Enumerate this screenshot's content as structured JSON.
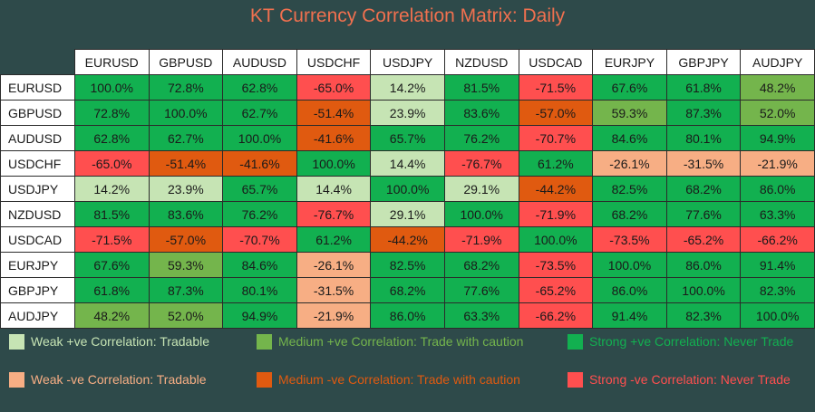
{
  "title": "KT Currency Correlation Matrix: Daily",
  "colors": {
    "weak_pos": "#c6e4b4",
    "medium_pos": "#74b54c",
    "strong_pos": "#12b050",
    "weak_neg": "#f7ae84",
    "medium_neg": "#e05a10",
    "strong_neg": "#ff4f4f",
    "diagonal": "#12b050"
  },
  "symbols": [
    "EURUSD",
    "GBPUSD",
    "AUDUSD",
    "USDCHF",
    "USDJPY",
    "NZDUSD",
    "USDCAD",
    "EURJPY",
    "GBPJPY",
    "AUDJPY"
  ],
  "matrix": [
    [
      {
        "v": "100.0%",
        "c": "strong_pos"
      },
      {
        "v": "72.8%",
        "c": "strong_pos"
      },
      {
        "v": "62.8%",
        "c": "strong_pos"
      },
      {
        "v": "-65.0%",
        "c": "strong_neg"
      },
      {
        "v": "14.2%",
        "c": "weak_pos"
      },
      {
        "v": "81.5%",
        "c": "strong_pos"
      },
      {
        "v": "-71.5%",
        "c": "strong_neg"
      },
      {
        "v": "67.6%",
        "c": "strong_pos"
      },
      {
        "v": "61.8%",
        "c": "strong_pos"
      },
      {
        "v": "48.2%",
        "c": "medium_pos"
      }
    ],
    [
      {
        "v": "72.8%",
        "c": "strong_pos"
      },
      {
        "v": "100.0%",
        "c": "strong_pos"
      },
      {
        "v": "62.7%",
        "c": "strong_pos"
      },
      {
        "v": "-51.4%",
        "c": "medium_neg"
      },
      {
        "v": "23.9%",
        "c": "weak_pos"
      },
      {
        "v": "83.6%",
        "c": "strong_pos"
      },
      {
        "v": "-57.0%",
        "c": "medium_neg"
      },
      {
        "v": "59.3%",
        "c": "medium_pos"
      },
      {
        "v": "87.3%",
        "c": "strong_pos"
      },
      {
        "v": "52.0%",
        "c": "medium_pos"
      }
    ],
    [
      {
        "v": "62.8%",
        "c": "strong_pos"
      },
      {
        "v": "62.7%",
        "c": "strong_pos"
      },
      {
        "v": "100.0%",
        "c": "strong_pos"
      },
      {
        "v": "-41.6%",
        "c": "medium_neg"
      },
      {
        "v": "65.7%",
        "c": "strong_pos"
      },
      {
        "v": "76.2%",
        "c": "strong_pos"
      },
      {
        "v": "-70.7%",
        "c": "strong_neg"
      },
      {
        "v": "84.6%",
        "c": "strong_pos"
      },
      {
        "v": "80.1%",
        "c": "strong_pos"
      },
      {
        "v": "94.9%",
        "c": "strong_pos"
      }
    ],
    [
      {
        "v": "-65.0%",
        "c": "strong_neg"
      },
      {
        "v": "-51.4%",
        "c": "medium_neg"
      },
      {
        "v": "-41.6%",
        "c": "medium_neg"
      },
      {
        "v": "100.0%",
        "c": "strong_pos"
      },
      {
        "v": "14.4%",
        "c": "weak_pos"
      },
      {
        "v": "-76.7%",
        "c": "strong_neg"
      },
      {
        "v": "61.2%",
        "c": "strong_pos"
      },
      {
        "v": "-26.1%",
        "c": "weak_neg"
      },
      {
        "v": "-31.5%",
        "c": "weak_neg"
      },
      {
        "v": "-21.9%",
        "c": "weak_neg"
      }
    ],
    [
      {
        "v": "14.2%",
        "c": "weak_pos"
      },
      {
        "v": "23.9%",
        "c": "weak_pos"
      },
      {
        "v": "65.7%",
        "c": "strong_pos"
      },
      {
        "v": "14.4%",
        "c": "weak_pos"
      },
      {
        "v": "100.0%",
        "c": "strong_pos"
      },
      {
        "v": "29.1%",
        "c": "weak_pos"
      },
      {
        "v": "-44.2%",
        "c": "medium_neg"
      },
      {
        "v": "82.5%",
        "c": "strong_pos"
      },
      {
        "v": "68.2%",
        "c": "strong_pos"
      },
      {
        "v": "86.0%",
        "c": "strong_pos"
      }
    ],
    [
      {
        "v": "81.5%",
        "c": "strong_pos"
      },
      {
        "v": "83.6%",
        "c": "strong_pos"
      },
      {
        "v": "76.2%",
        "c": "strong_pos"
      },
      {
        "v": "-76.7%",
        "c": "strong_neg"
      },
      {
        "v": "29.1%",
        "c": "weak_pos"
      },
      {
        "v": "100.0%",
        "c": "strong_pos"
      },
      {
        "v": "-71.9%",
        "c": "strong_neg"
      },
      {
        "v": "68.2%",
        "c": "strong_pos"
      },
      {
        "v": "77.6%",
        "c": "strong_pos"
      },
      {
        "v": "63.3%",
        "c": "strong_pos"
      }
    ],
    [
      {
        "v": "-71.5%",
        "c": "strong_neg"
      },
      {
        "v": "-57.0%",
        "c": "medium_neg"
      },
      {
        "v": "-70.7%",
        "c": "strong_neg"
      },
      {
        "v": "61.2%",
        "c": "strong_pos"
      },
      {
        "v": "-44.2%",
        "c": "medium_neg"
      },
      {
        "v": "-71.9%",
        "c": "strong_neg"
      },
      {
        "v": "100.0%",
        "c": "strong_pos"
      },
      {
        "v": "-73.5%",
        "c": "strong_neg"
      },
      {
        "v": "-65.2%",
        "c": "strong_neg"
      },
      {
        "v": "-66.2%",
        "c": "strong_neg"
      }
    ],
    [
      {
        "v": "67.6%",
        "c": "strong_pos"
      },
      {
        "v": "59.3%",
        "c": "medium_pos"
      },
      {
        "v": "84.6%",
        "c": "strong_pos"
      },
      {
        "v": "-26.1%",
        "c": "weak_neg"
      },
      {
        "v": "82.5%",
        "c": "strong_pos"
      },
      {
        "v": "68.2%",
        "c": "strong_pos"
      },
      {
        "v": "-73.5%",
        "c": "strong_neg"
      },
      {
        "v": "100.0%",
        "c": "strong_pos"
      },
      {
        "v": "86.0%",
        "c": "strong_pos"
      },
      {
        "v": "91.4%",
        "c": "strong_pos"
      }
    ],
    [
      {
        "v": "61.8%",
        "c": "strong_pos"
      },
      {
        "v": "87.3%",
        "c": "strong_pos"
      },
      {
        "v": "80.1%",
        "c": "strong_pos"
      },
      {
        "v": "-31.5%",
        "c": "weak_neg"
      },
      {
        "v": "68.2%",
        "c": "strong_pos"
      },
      {
        "v": "77.6%",
        "c": "strong_pos"
      },
      {
        "v": "-65.2%",
        "c": "strong_neg"
      },
      {
        "v": "86.0%",
        "c": "strong_pos"
      },
      {
        "v": "100.0%",
        "c": "strong_pos"
      },
      {
        "v": "82.3%",
        "c": "strong_pos"
      }
    ],
    [
      {
        "v": "48.2%",
        "c": "medium_pos"
      },
      {
        "v": "52.0%",
        "c": "medium_pos"
      },
      {
        "v": "94.9%",
        "c": "strong_pos"
      },
      {
        "v": "-21.9%",
        "c": "weak_neg"
      },
      {
        "v": "86.0%",
        "c": "strong_pos"
      },
      {
        "v": "63.3%",
        "c": "strong_pos"
      },
      {
        "v": "-66.2%",
        "c": "strong_neg"
      },
      {
        "v": "91.4%",
        "c": "strong_pos"
      },
      {
        "v": "82.3%",
        "c": "strong_pos"
      },
      {
        "v": "100.0%",
        "c": "strong_pos"
      }
    ]
  ],
  "legend": [
    {
      "label": "Weak +ve Correlation: Tradable",
      "color_key": "weak_pos",
      "text_color": "#c6e4b4"
    },
    {
      "label": "Medium +ve Correlation: Trade with caution",
      "color_key": "medium_pos",
      "text_color": "#74b54c"
    },
    {
      "label": "Strong +ve Correlation: Never Trade",
      "color_key": "strong_pos",
      "text_color": "#12b050"
    },
    {
      "label": "Weak -ve Correlation: Tradable",
      "color_key": "weak_neg",
      "text_color": "#f7ae84"
    },
    {
      "label": "Medium -ve Correlation: Trade with caution",
      "color_key": "medium_neg",
      "text_color": "#e05a10"
    },
    {
      "label": "Strong -ve Correlation: Never Trade",
      "color_key": "strong_neg",
      "text_color": "#ff4f4f"
    }
  ]
}
